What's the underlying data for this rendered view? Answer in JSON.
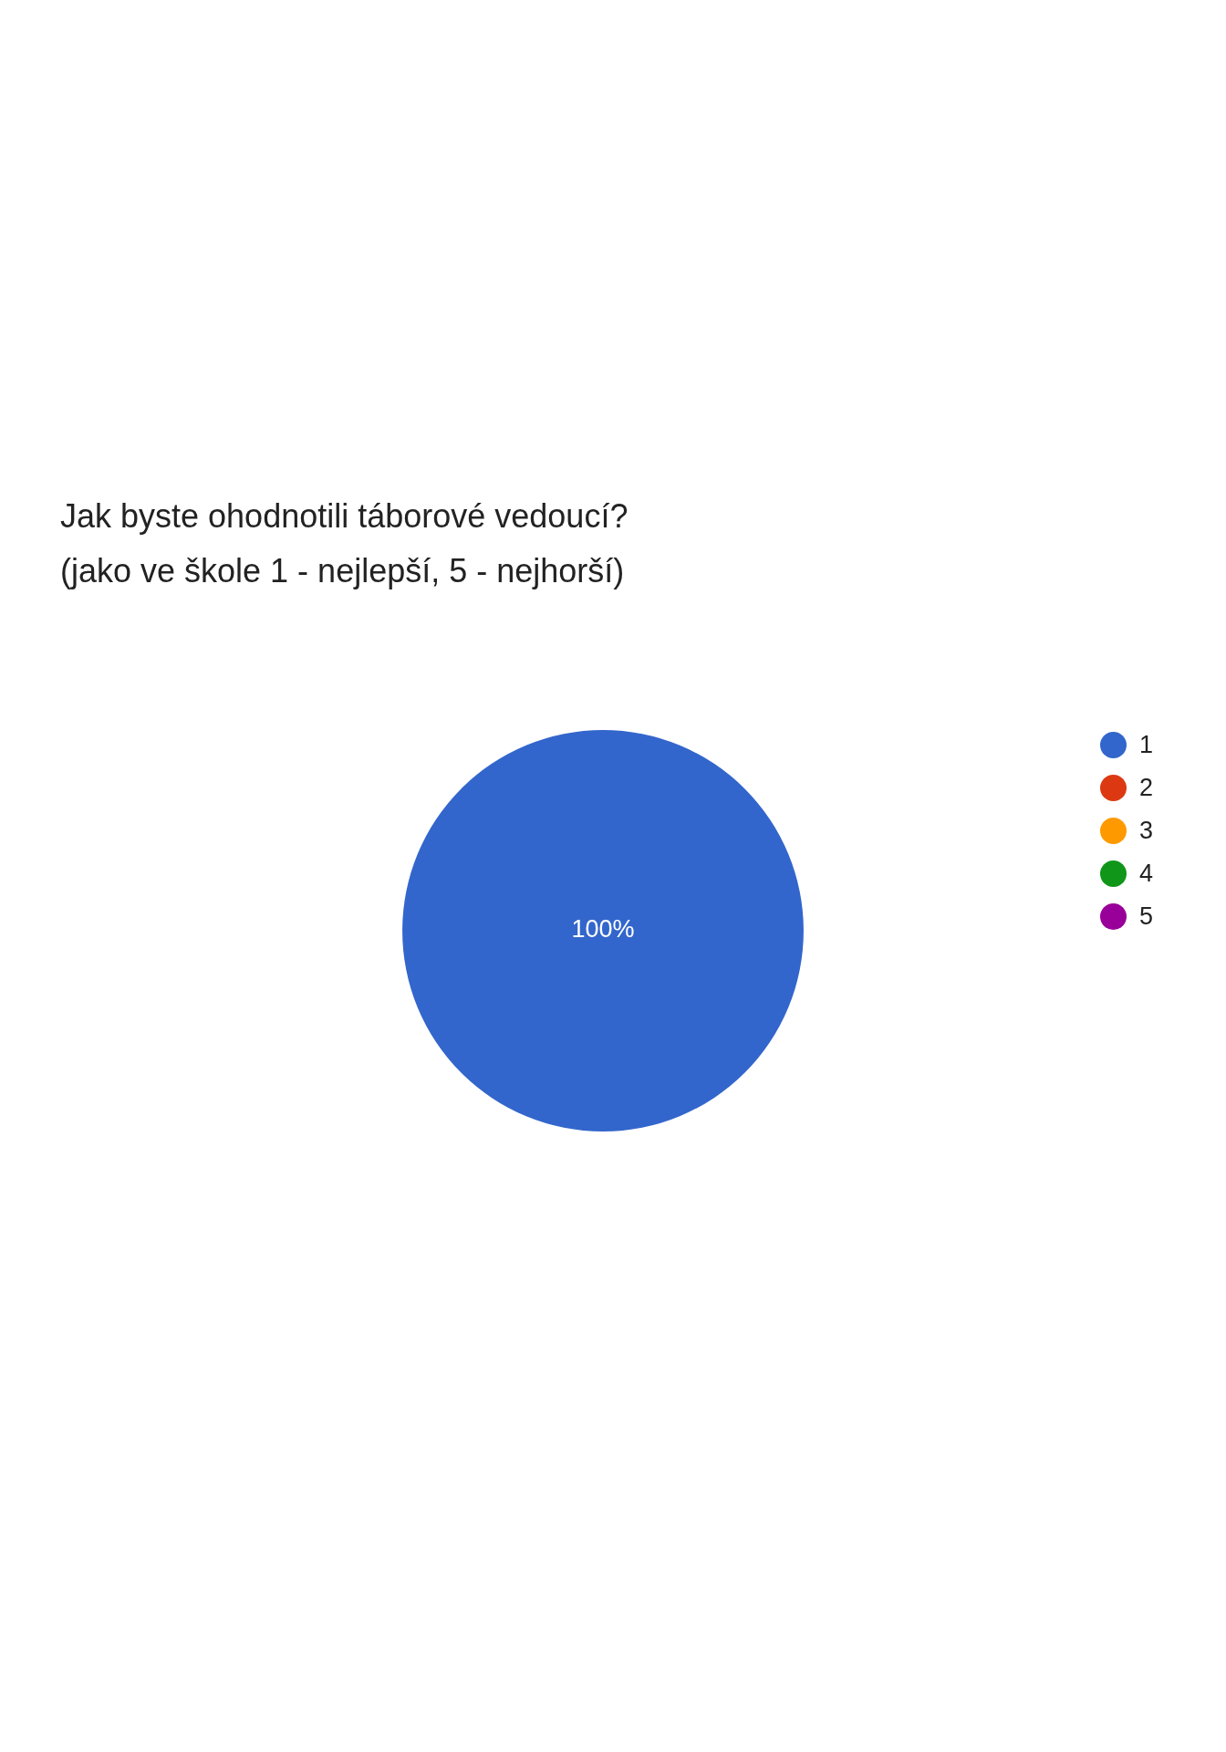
{
  "chart_data": {
    "type": "pie",
    "title": "Jak byste ohodnotili táborové vedoucí?",
    "subtitle": "(jako ve škole 1 - nejlepší, 5 - nejhorší)",
    "categories": [
      "1",
      "2",
      "3",
      "4",
      "5"
    ],
    "values": [
      100,
      0,
      0,
      0,
      0
    ],
    "value_labels": [
      "100%",
      null,
      null,
      null,
      null
    ],
    "colors": [
      "#3366cc",
      "#dc3912",
      "#ff9900",
      "#109618",
      "#990099"
    ],
    "legend": "right"
  }
}
